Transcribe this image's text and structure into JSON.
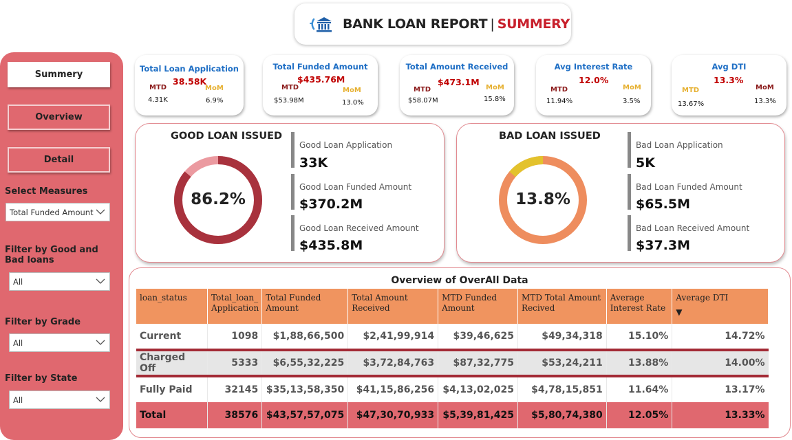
{
  "header": {
    "title": "BANK LOAN REPORT",
    "separator": "|",
    "subtitle": "SUMMERY",
    "icon": "bank-icon"
  },
  "sidebar": {
    "buttons": [
      {
        "label": "Summery",
        "state": "active"
      },
      {
        "label": "Overview",
        "state": "inactive"
      },
      {
        "label": "Detail",
        "state": "inactive"
      }
    ],
    "filters": [
      {
        "label": "Select Measures",
        "value": "Total Funded Amount"
      },
      {
        "label": "Filter by Good and Bad loans",
        "value": "All"
      },
      {
        "label": "Filter by Grade",
        "value": "All"
      },
      {
        "label": "Filter by State",
        "value": "All"
      }
    ]
  },
  "kpis": [
    {
      "title": "Total Loan Application",
      "value": "38.58K",
      "mtd_label": "MTD",
      "mtd": "4.31K",
      "mom_label": "MoM",
      "mom": "6.9%"
    },
    {
      "title": "Total Funded Amount",
      "value": "$435.76M",
      "mtd_label": "MTD",
      "mtd": "$53.98M",
      "mom_label": "MoM",
      "mom": "13.0%"
    },
    {
      "title": "Total Amount Received",
      "value": "$473.1M",
      "mtd_label": "MTD",
      "mtd": "$58.07M",
      "mom_label": "MoM",
      "mom": "15.8%"
    },
    {
      "title": "Avg Interest Rate",
      "value": "12.0%",
      "mtd_label": "MTD",
      "mtd": "11.94%",
      "mom_label": "MoM",
      "mom": "3.5%"
    },
    {
      "title": "Avg DTI",
      "value": "13.3%",
      "mtd_label": "MTD",
      "mtd": "13.67%",
      "mom_label": "MoM",
      "mom": "13.3%"
    }
  ],
  "good_loan": {
    "title": "GOOD LOAN ISSUED",
    "percent_label": "86.2%",
    "percent": 86.2,
    "colors": {
      "main": "#a8323d",
      "rest": "#eb9aa0"
    },
    "metrics": [
      {
        "label": "Good Loan Application",
        "value": "33K"
      },
      {
        "label": "Good Loan Funded Amount",
        "value": "$370.2M"
      },
      {
        "label": "Good Loan Received Amount",
        "value": "$435.8M"
      }
    ]
  },
  "bad_loan": {
    "title": "BAD LOAN ISSUED",
    "percent_label": "13.8%",
    "percent": 13.8,
    "colors": {
      "main": "#e3c22c",
      "rest": "#ee8d5e"
    },
    "metrics": [
      {
        "label": "Bad Loan Application",
        "value": "5K"
      },
      {
        "label": "Bad Loan Funded Amount",
        "value": "$65.5M"
      },
      {
        "label": "Bad Loan Received Amount",
        "value": "$37.3M"
      }
    ]
  },
  "overview": {
    "title": "Overview of OverAll Data",
    "columns": [
      "loan_status",
      "Total_loan_ Application",
      "Total Funded Amount",
      "Total Amount Received",
      "MTD Funded Amount",
      "MTD Total Amount Recived",
      "Average Interest Rate",
      "Average DTI"
    ],
    "sort_indicator": "▼",
    "rows": [
      [
        "Current",
        "1098",
        "$1,88,66,500",
        "$2,41,99,914",
        "$39,46,625",
        "$49,34,318",
        "15.10%",
        "14.72%"
      ],
      [
        "Charged Off",
        "5333",
        "$6,55,32,225",
        "$3,72,84,763",
        "$87,32,775",
        "$53,24,211",
        "13.88%",
        "14.00%"
      ],
      [
        "Fully Paid",
        "32145",
        "$35,13,58,350",
        "$41,15,86,256",
        "$4,13,02,025",
        "$4,78,15,851",
        "11.64%",
        "13.17%"
      ]
    ],
    "total": [
      "Total",
      "38576",
      "$43,57,57,075",
      "$47,30,70,933",
      "$5,39,81,425",
      "$5,80,74,380",
      "12.05%",
      "13.33%"
    ]
  }
}
